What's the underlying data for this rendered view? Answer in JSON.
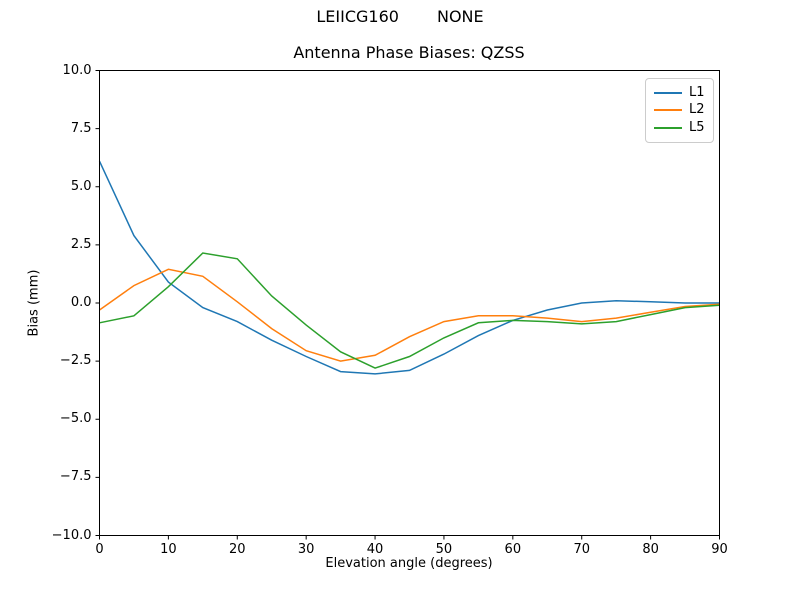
{
  "figure": {
    "suptitle_left": "LEIICG160",
    "suptitle_right": "NONE"
  },
  "chart_data": {
    "type": "line",
    "title": "Antenna Phase Biases: QZSS",
    "xlabel": "Elevation angle (degrees)",
    "ylabel": "Bias (mm)",
    "xlim": [
      0,
      90
    ],
    "ylim": [
      -10,
      10
    ],
    "grid": false,
    "legend_position": "upper right",
    "xticks": [
      0,
      10,
      20,
      30,
      40,
      50,
      60,
      70,
      80,
      90
    ],
    "xtick_labels": [
      "0",
      "10",
      "20",
      "30",
      "40",
      "50",
      "60",
      "70",
      "80",
      "90"
    ],
    "yticks": [
      -10,
      -7.5,
      -5,
      -2.5,
      0,
      2.5,
      5,
      7.5,
      10
    ],
    "ytick_labels": [
      "−10.0",
      "−7.5",
      "−5.0",
      "−2.5",
      "0.0",
      "2.5",
      "5.0",
      "7.5",
      "10.0"
    ],
    "x": [
      0,
      5,
      10,
      15,
      20,
      25,
      30,
      35,
      40,
      45,
      50,
      55,
      60,
      65,
      70,
      75,
      80,
      85,
      90
    ],
    "series": [
      {
        "name": "L1",
        "color": "#1f77b4",
        "values": [
          6.1,
          2.9,
          0.9,
          -0.2,
          -0.8,
          -1.6,
          -2.3,
          -2.95,
          -3.05,
          -2.9,
          -2.2,
          -1.4,
          -0.75,
          -0.3,
          0.0,
          0.1,
          0.05,
          0.0,
          0.0
        ]
      },
      {
        "name": "L2",
        "color": "#ff7f0e",
        "values": [
          -0.3,
          0.75,
          1.45,
          1.15,
          0.05,
          -1.1,
          -2.05,
          -2.5,
          -2.25,
          -1.45,
          -0.8,
          -0.55,
          -0.55,
          -0.65,
          -0.8,
          -0.65,
          -0.4,
          -0.15,
          -0.05
        ]
      },
      {
        "name": "L5",
        "color": "#2ca02c",
        "values": [
          -0.85,
          -0.55,
          0.7,
          2.15,
          1.9,
          0.3,
          -0.95,
          -2.1,
          -2.8,
          -2.3,
          -1.5,
          -0.85,
          -0.75,
          -0.8,
          -0.9,
          -0.8,
          -0.5,
          -0.2,
          -0.1
        ]
      }
    ]
  }
}
